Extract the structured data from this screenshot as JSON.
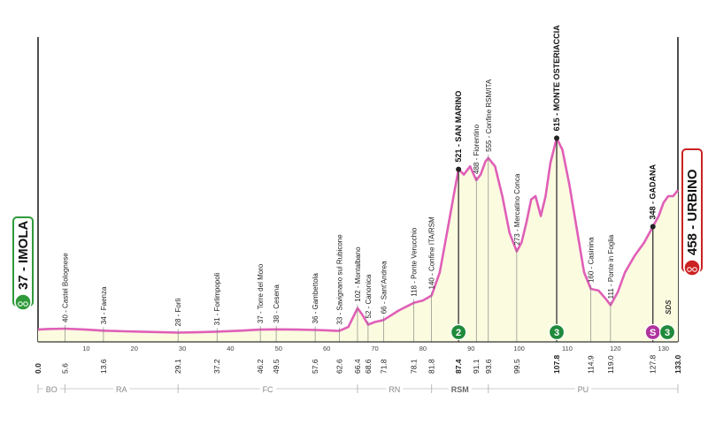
{
  "chart_data": {
    "type": "area",
    "title": "",
    "xlabel": "",
    "ylabel": "",
    "xlim": [
      0,
      133
    ],
    "ylim": [
      0,
      800
    ],
    "colors": {
      "profile_line": "#e05fb7",
      "profile_fill": "#fbfbe0",
      "climb_marker": "#1f8a3b",
      "sprint_marker": "#b0359e",
      "start_border": "#2f9a3a",
      "finish_border": "#cc2222"
    },
    "start": {
      "label": "37 - IMOLA",
      "km": 0,
      "alt": 37
    },
    "finish": {
      "label": "458 - URBINO",
      "km": 133,
      "alt": 458
    },
    "x_ticks": [
      10,
      20,
      30,
      40,
      50,
      60,
      70,
      80,
      90,
      100,
      110,
      120,
      130
    ],
    "km_labels": [
      "0.0",
      "5.6",
      "13.6",
      "29.1",
      "37.2",
      "46.2",
      "49.5",
      "57.6",
      "62.6",
      "66.4",
      "68.6",
      "71.8",
      "78.1",
      "81.8",
      "87.4",
      "91.1",
      "93.6",
      "99.5",
      "107.8",
      "114.9",
      "119.0",
      "127.8",
      "133.0"
    ],
    "km_positions": [
      0,
      5.6,
      13.6,
      29.1,
      37.2,
      46.2,
      49.5,
      57.6,
      62.6,
      66.4,
      68.6,
      71.8,
      78.1,
      81.8,
      87.4,
      91.1,
      93.6,
      99.5,
      107.8,
      114.9,
      119.0,
      127.8,
      133.0
    ],
    "km_bold": [
      "0.0",
      "87.4",
      "107.8",
      "133.0"
    ],
    "waypoints": [
      {
        "km": 5.6,
        "label": "40 - Castel Bolognese"
      },
      {
        "km": 13.6,
        "label": "34 - Faenza"
      },
      {
        "km": 29.1,
        "label": "28 - Forlì"
      },
      {
        "km": 37.2,
        "label": "31 - Forlimpopoli"
      },
      {
        "km": 46.2,
        "label": "37 - Torre del Moro"
      },
      {
        "km": 49.5,
        "label": "38 - Cesena"
      },
      {
        "km": 57.6,
        "label": "36 - Gambettola"
      },
      {
        "km": 62.6,
        "label": "33 - Savignano sul Rubicone"
      },
      {
        "km": 66.4,
        "label": "102 - Montalbano"
      },
      {
        "km": 68.6,
        "label": "52 - Canonica"
      },
      {
        "km": 71.8,
        "label": "66 - Sant'Andrea"
      },
      {
        "km": 78.1,
        "label": "118 - Ponte Verucchio"
      },
      {
        "km": 81.8,
        "label": "140 - Confine ITA/RSM"
      },
      {
        "km": 87.4,
        "label": "521 - SAN MARINO",
        "climb": true
      },
      {
        "km": 91.1,
        "label": "488 - Fiorentino"
      },
      {
        "km": 93.6,
        "label": "555 - Confine RSM/ITA"
      },
      {
        "km": 99.5,
        "label": "273 - Mercatino Conca"
      },
      {
        "km": 107.8,
        "label": "615 - MONTE OSTERIACCIA",
        "climb": true
      },
      {
        "km": 114.9,
        "label": "160 - Casinina"
      },
      {
        "km": 119.0,
        "label": "111 - Ponte in Foglia"
      },
      {
        "km": 127.8,
        "label": "348 - GADANA",
        "climb": true
      }
    ],
    "profile": [
      [
        0,
        37
      ],
      [
        2,
        39
      ],
      [
        5.6,
        40
      ],
      [
        10,
        37
      ],
      [
        13.6,
        34
      ],
      [
        18,
        32
      ],
      [
        24,
        30
      ],
      [
        29.1,
        28
      ],
      [
        33,
        29
      ],
      [
        37.2,
        31
      ],
      [
        42,
        34
      ],
      [
        46.2,
        37
      ],
      [
        49.5,
        38
      ],
      [
        54,
        37
      ],
      [
        57.6,
        36
      ],
      [
        60,
        35
      ],
      [
        62.6,
        33
      ],
      [
        64.5,
        45
      ],
      [
        66.4,
        102
      ],
      [
        67.5,
        80
      ],
      [
        68.6,
        52
      ],
      [
        70,
        60
      ],
      [
        71.8,
        66
      ],
      [
        75,
        95
      ],
      [
        78.1,
        118
      ],
      [
        80,
        125
      ],
      [
        81.8,
        140
      ],
      [
        83.5,
        210
      ],
      [
        85,
        330
      ],
      [
        86.5,
        450
      ],
      [
        87.4,
        521
      ],
      [
        88.5,
        505
      ],
      [
        89.8,
        530
      ],
      [
        91.1,
        488
      ],
      [
        92,
        505
      ],
      [
        93,
        545
      ],
      [
        93.6,
        555
      ],
      [
        95,
        530
      ],
      [
        96.5,
        440
      ],
      [
        98,
        330
      ],
      [
        99.5,
        273
      ],
      [
        100.5,
        300
      ],
      [
        101.5,
        360
      ],
      [
        102.5,
        430
      ],
      [
        103.4,
        440
      ],
      [
        104.5,
        380
      ],
      [
        105.5,
        440
      ],
      [
        106.5,
        540
      ],
      [
        107.8,
        615
      ],
      [
        109,
        580
      ],
      [
        110.5,
        470
      ],
      [
        112,
        340
      ],
      [
        113.5,
        210
      ],
      [
        114.9,
        160
      ],
      [
        116.5,
        155
      ],
      [
        118,
        130
      ],
      [
        119.0,
        111
      ],
      [
        120.5,
        150
      ],
      [
        122,
        210
      ],
      [
        124,
        260
      ],
      [
        126,
        300
      ],
      [
        127.8,
        348
      ],
      [
        129,
        380
      ],
      [
        130,
        420
      ],
      [
        131,
        440
      ],
      [
        132,
        440
      ],
      [
        133,
        458
      ]
    ],
    "y_ticks_altitude": [
      {
        "km": 107.8,
        "values": [
          100,
          200,
          300,
          400,
          500
        ]
      },
      {
        "km": 127.8,
        "values": [
          100,
          200,
          300
        ]
      }
    ],
    "markers": [
      {
        "km": 87.4,
        "symbol": "2",
        "kind": "climb"
      },
      {
        "km": 107.8,
        "symbol": "3",
        "kind": "climb"
      },
      {
        "km": 127.8,
        "symbol": "S",
        "kind": "sprint"
      },
      {
        "km": 130.8,
        "symbol": "3",
        "kind": "climb"
      }
    ],
    "sds_label": "SDS",
    "regions": [
      {
        "label": "BO",
        "from": 0,
        "to": 5.6
      },
      {
        "label": "RA",
        "from": 5.6,
        "to": 29.1
      },
      {
        "label": "FC",
        "from": 29.1,
        "to": 66.4
      },
      {
        "label": "RN",
        "from": 66.4,
        "to": 81.8
      },
      {
        "label": "RSM",
        "from": 81.8,
        "to": 93.6,
        "bold": true
      },
      {
        "label": "PU",
        "from": 93.6,
        "to": 133.0
      }
    ]
  }
}
